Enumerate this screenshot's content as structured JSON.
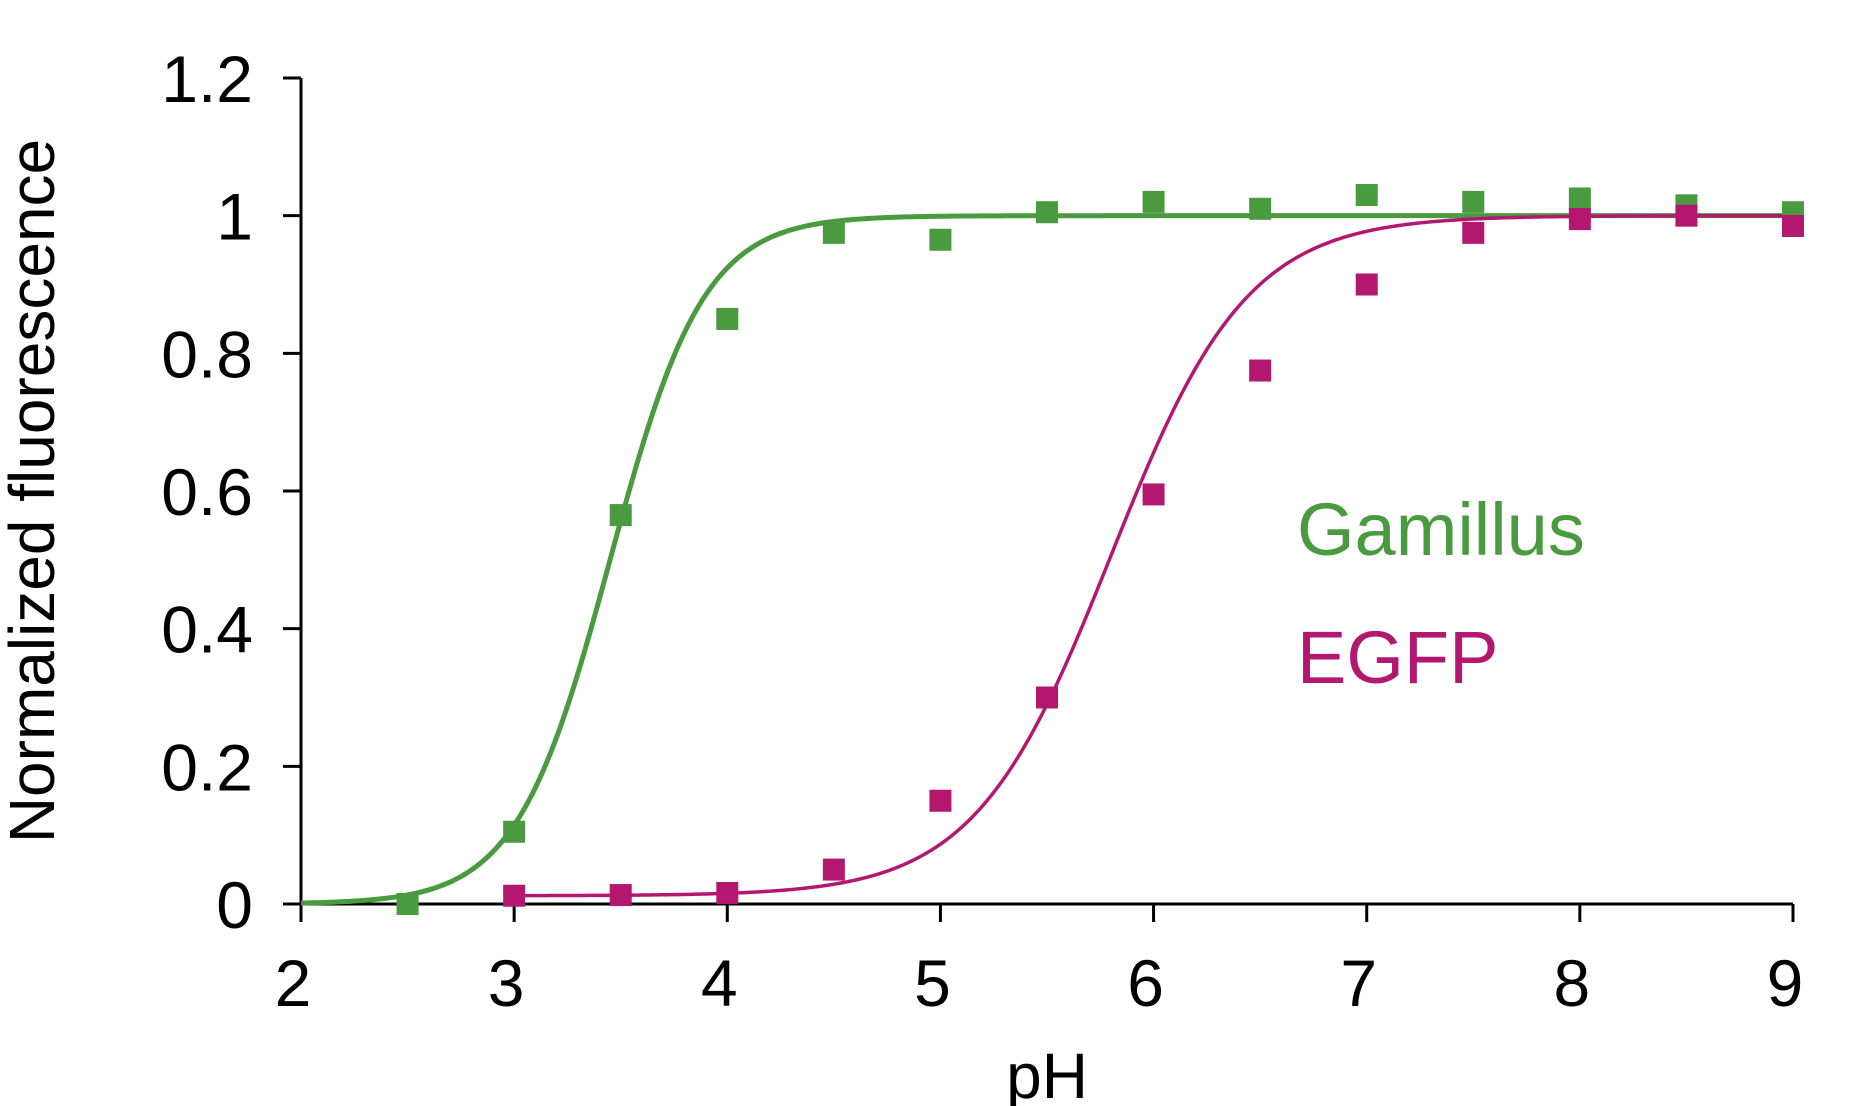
{
  "chart_data": {
    "type": "scatter",
    "title": "",
    "xlabel": "pH",
    "ylabel": "Normalized fluorescence",
    "xlim": [
      2,
      9
    ],
    "ylim": [
      0,
      1.2
    ],
    "xticks": [
      "2",
      "3",
      "4",
      "5",
      "6",
      "7",
      "8",
      "9"
    ],
    "yticks": [
      "0",
      "0.2",
      "0.4",
      "0.6",
      "0.8",
      "1",
      "1.2"
    ],
    "grid": false,
    "legend_placement": "right",
    "series": [
      {
        "name": "Gamillus",
        "color": "#4a9a3f",
        "marker": "square",
        "fit": "sigmoid",
        "fit_pKa": 3.45,
        "fit_slope": 0.22,
        "x": [
          2.5,
          3,
          3.5,
          4,
          4.5,
          5,
          5.5,
          6,
          6.5,
          7,
          7.5,
          8,
          8.5,
          9
        ],
        "values": [
          0.0,
          0.105,
          0.565,
          0.85,
          0.975,
          0.965,
          1.005,
          1.02,
          1.01,
          1.03,
          1.02,
          1.025,
          1.015,
          1.005
        ]
      },
      {
        "name": "EGFP",
        "color": "#b3176f",
        "marker": "square",
        "fit": "sigmoid",
        "fit_pKa": 5.8,
        "fit_slope": 0.32,
        "fit_baseline": 0.012,
        "x": [
          3,
          3.5,
          4,
          4.5,
          5,
          5.5,
          6,
          6.5,
          7,
          7.5,
          8,
          8.5,
          9
        ],
        "values": [
          0.012,
          0.013,
          0.016,
          0.05,
          0.15,
          0.3,
          0.595,
          0.775,
          0.9,
          0.975,
          0.995,
          1.0,
          0.985
        ]
      }
    ]
  }
}
